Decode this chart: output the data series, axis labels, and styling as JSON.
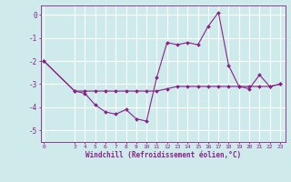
{
  "line1_x": [
    0,
    3,
    4,
    5,
    6,
    7,
    8,
    9,
    10,
    11,
    12,
    13,
    14,
    15,
    16,
    17,
    18,
    19,
    20,
    21,
    22,
    23
  ],
  "line1_y": [
    -2.0,
    -3.3,
    -3.4,
    -3.9,
    -4.2,
    -4.3,
    -4.1,
    -4.5,
    -4.6,
    -2.7,
    -1.2,
    -1.3,
    -1.2,
    -1.3,
    -0.5,
    0.1,
    -2.2,
    -3.1,
    -3.2,
    -2.6,
    -3.1,
    -3.0
  ],
  "line2_x": [
    0,
    3,
    4,
    5,
    6,
    7,
    8,
    9,
    10,
    11,
    12,
    13,
    14,
    15,
    16,
    17,
    18,
    19,
    20,
    21,
    22,
    23
  ],
  "line2_y": [
    -2.0,
    -3.3,
    -3.3,
    -3.3,
    -3.3,
    -3.3,
    -3.3,
    -3.3,
    -3.3,
    -3.3,
    -3.2,
    -3.1,
    -3.1,
    -3.1,
    -3.1,
    -3.1,
    -3.1,
    -3.1,
    -3.1,
    -3.1,
    -3.1,
    -3.0
  ],
  "line_color": "#882288",
  "bg_color": "#ceeaea",
  "grid_color": "#ffffff",
  "xlabel": "Windchill (Refroidissement éolien,°C)",
  "xlabel_color": "#882288",
  "ytick_values": [
    0,
    -1,
    -2,
    -3,
    -4,
    -5
  ],
  "xtick_positions": [
    0,
    3,
    4,
    5,
    6,
    7,
    8,
    9,
    10,
    11,
    12,
    13,
    14,
    15,
    16,
    17,
    18,
    19,
    20,
    21,
    22,
    23
  ],
  "xtick_labels": [
    "0",
    "3",
    "4",
    "5",
    "6",
    "7",
    "8",
    "9",
    "10",
    "11",
    "12",
    "13",
    "14",
    "15",
    "16",
    "17",
    "18",
    "19",
    "20",
    "21",
    "22",
    "23"
  ],
  "ylim": [
    -5.5,
    0.4
  ],
  "xlim": [
    -0.3,
    23.5
  ],
  "markersize": 2.0,
  "linewidth": 0.8
}
